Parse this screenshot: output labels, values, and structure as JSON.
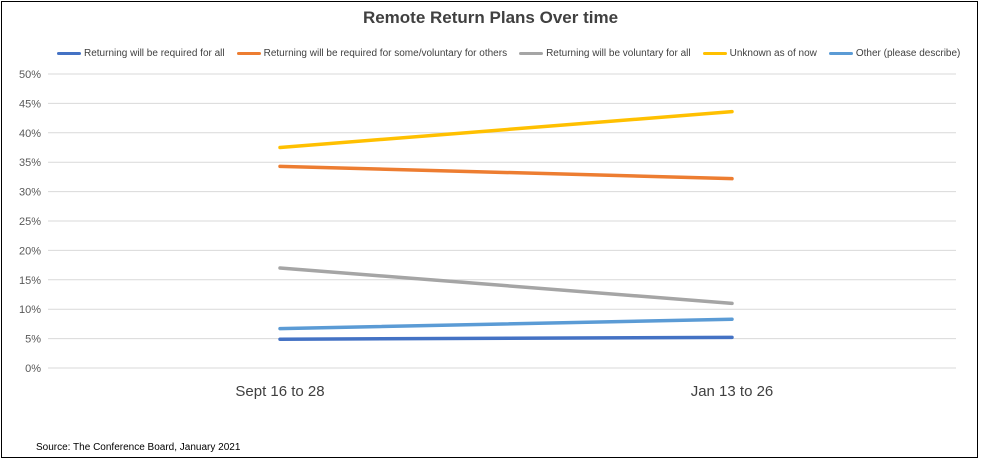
{
  "chart_data": {
    "type": "line",
    "title": "Remote Return Plans Over time",
    "categories": [
      "Sept 16 to 28",
      "Jan 13 to 26"
    ],
    "y_tick_labels": [
      "0%",
      "5%",
      "10%",
      "15%",
      "20%",
      "25%",
      "30%",
      "35%",
      "40%",
      "45%",
      "50%"
    ],
    "ylim": [
      0,
      50
    ],
    "y_unit": "%",
    "grid": true,
    "legend_position": "top",
    "series": [
      {
        "name": "Returning will be required for all",
        "values": [
          4.9,
          5.2
        ],
        "color": "#4472C4"
      },
      {
        "name": "Returning will be required for some/voluntary for others",
        "values": [
          34.3,
          32.2
        ],
        "color": "#ED7D31"
      },
      {
        "name": "Returning will be voluntary for all",
        "values": [
          17.0,
          11.0
        ],
        "color": "#A5A5A5"
      },
      {
        "name": "Unknown as of now",
        "values": [
          37.5,
          43.6
        ],
        "color": "#FFC000"
      },
      {
        "name": "Other (please describe)",
        "values": [
          6.7,
          8.3
        ],
        "color": "#5B9BD5"
      }
    ]
  },
  "source": "Source: The Conference Board, January 2021"
}
